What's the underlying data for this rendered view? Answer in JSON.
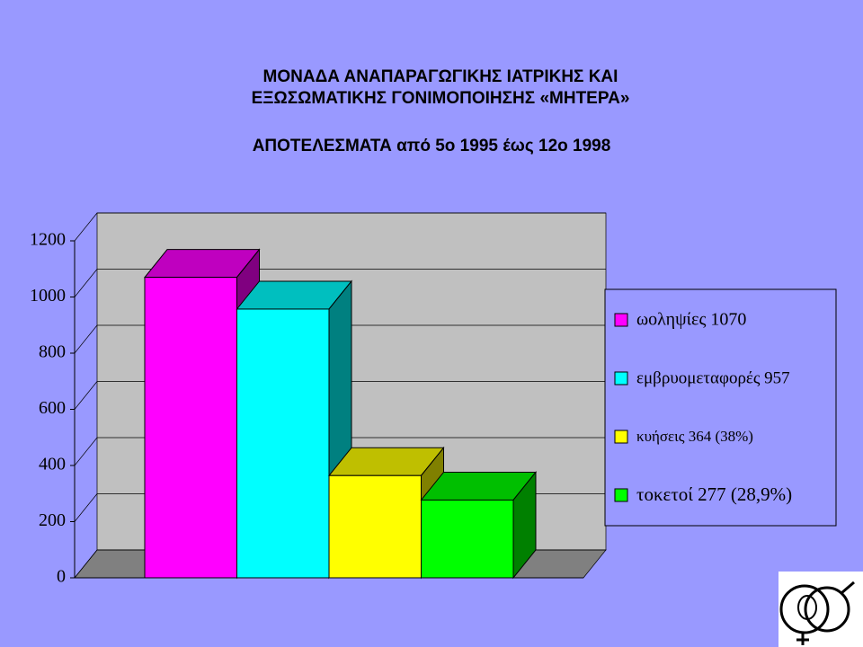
{
  "chart_data": {
    "type": "bar3d",
    "title": [
      "ΜΟΝΑΔΑ ΑΝΑΠΑΡΑΓΩΓΙΚΗΣ ΙΑΤΡΙΚΗΣ ΚΑΙ",
      "ΕΞΩΣΩΜΑΤΙΚΗΣ ΓΟΝΙΜΟΠΟΙΗΣΗΣ «ΜΗΤΕΡΑ»"
    ],
    "subtitle": "ΑΠΟΤΕΛΕΣΜΑΤΑ από  5ο 1995  έως 12ο 1998",
    "series": [
      {
        "name": "ωοληψίες 1070",
        "color": "#ff00ff",
        "values": [
          1070
        ]
      },
      {
        "name": "εμβρυομεταφορές  957",
        "color": "#00ffff",
        "values": [
          957
        ]
      },
      {
        "name": "κυήσεις 364 (38%)",
        "color": "#ffff00",
        "values": [
          364
        ]
      },
      {
        "name": "τοκετοί 277 (28,9%)",
        "color": "#00ff00",
        "values": [
          277
        ]
      }
    ],
    "ylim": [
      0,
      1200
    ],
    "yticks": [
      0,
      200,
      400,
      600,
      800,
      1000,
      1200
    ],
    "grid": true,
    "legend": "right"
  }
}
